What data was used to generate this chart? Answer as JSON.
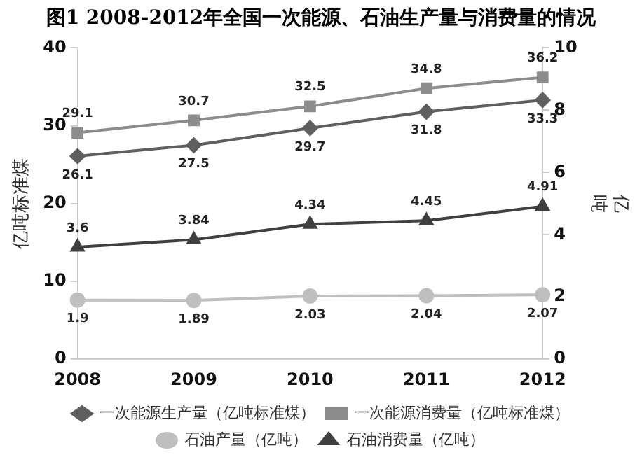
{
  "chart_data": {
    "type": "line",
    "title": "图1  2008-2012年全国一次能源、石油生产量与消费量的情况",
    "ylabel": "亿吨标准煤",
    "y2label": "亿吨",
    "categories": [
      "2008",
      "2009",
      "2010",
      "2011",
      "2012"
    ],
    "series": [
      {
        "name": "一次能源生产量（亿吨标准煤）",
        "color": "#5f5f5f",
        "marker": "diamond",
        "values": [
          26.1,
          27.5,
          29.7,
          31.8,
          33.3
        ]
      },
      {
        "name": "一次能源消费量（亿吨标准煤）",
        "color": "#8c8c8c",
        "marker": "square",
        "values": [
          29.1,
          30.7,
          32.5,
          34.8,
          36.2
        ]
      },
      {
        "name": "石油产量（亿吨）",
        "color": "#bfbfbf",
        "marker": "circle",
        "axis": "y2",
        "values": [
          1.9,
          1.89,
          2.03,
          2.04,
          2.07
        ]
      },
      {
        "name": "石油消费量（亿吨）",
        "color": "#404040",
        "marker": "triangle",
        "axis": "y2",
        "values": [
          3.6,
          3.84,
          4.34,
          4.45,
          4.91
        ]
      }
    ],
    "ylim": [
      0,
      40
    ],
    "yticks": [
      0,
      10,
      20,
      30,
      40
    ],
    "y2lim": [
      0,
      10
    ],
    "y2ticks": [
      0,
      2,
      4,
      6,
      8,
      10
    ],
    "grid": false,
    "legend": "bottom",
    "data_labels": true,
    "line_style": "solid"
  }
}
